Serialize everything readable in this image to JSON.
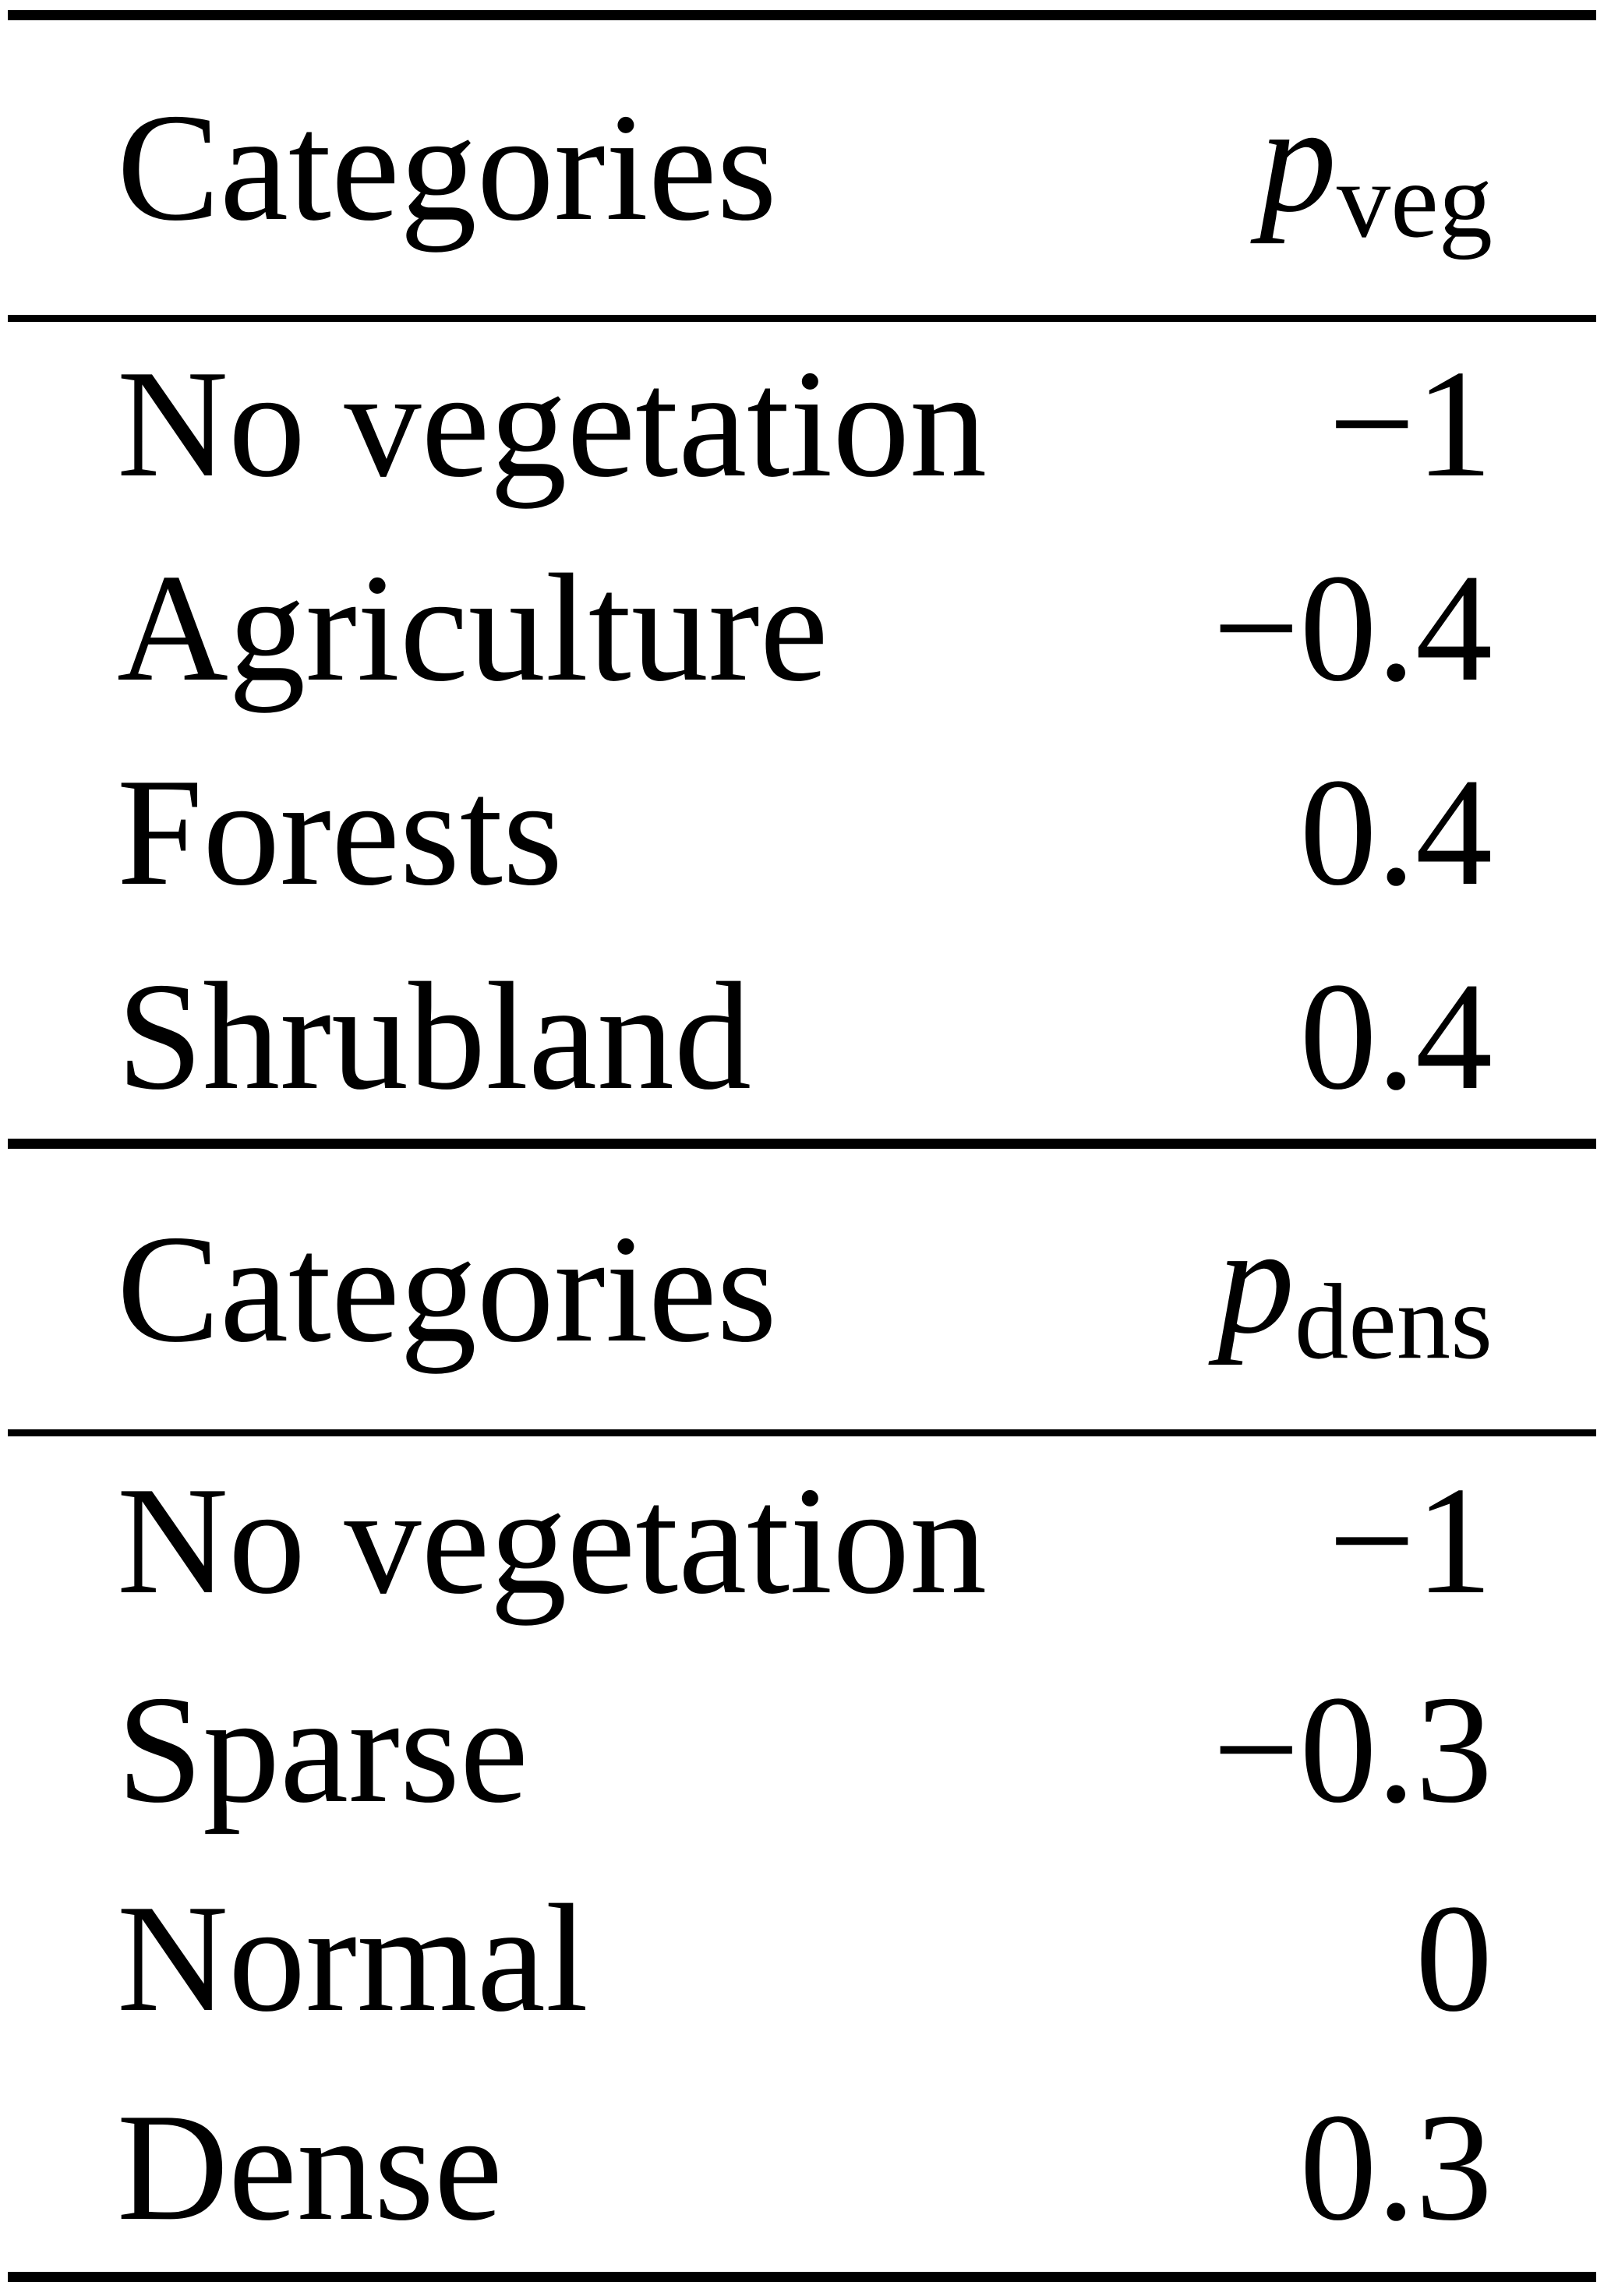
{
  "colors": {
    "text": "#000000",
    "background": "#ffffff",
    "rule": "#000000"
  },
  "tables": [
    {
      "header": {
        "category_label": "Categories",
        "value_symbol": "p",
        "value_subscript": "veg"
      },
      "rows": [
        {
          "category": "No vegetation",
          "value": "−1"
        },
        {
          "category": "Agriculture",
          "value": "−0.4"
        },
        {
          "category": "Forests",
          "value": "0.4"
        },
        {
          "category": "Shrubland",
          "value": "0.4"
        }
      ]
    },
    {
      "header": {
        "category_label": "Categories",
        "value_symbol": "p",
        "value_subscript": "dens"
      },
      "rows": [
        {
          "category": "No vegetation",
          "value": "−1"
        },
        {
          "category": "Sparse",
          "value": "−0.3"
        },
        {
          "category": "Normal",
          "value": "0"
        },
        {
          "category": "Dense",
          "value": "0.3"
        }
      ]
    }
  ]
}
